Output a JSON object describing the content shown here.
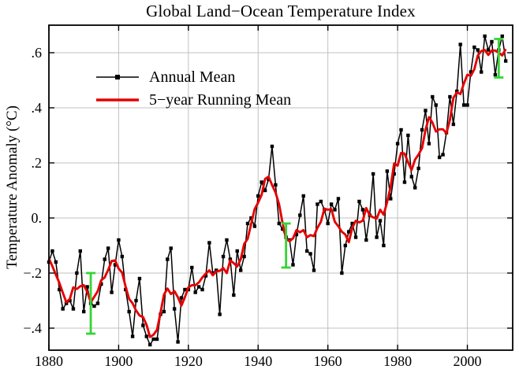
{
  "chart_data": {
    "type": "line",
    "title": "Global Land−Ocean Temperature Index",
    "ylabel": "Temperature Anomaly (°C)",
    "xlabel": "",
    "xlim": [
      1880,
      2013
    ],
    "ylim": [
      -0.48,
      0.7
    ],
    "grid": true,
    "legend_position": "upper-left-inside",
    "x_ticks": {
      "values": [
        1880,
        1900,
        1920,
        1940,
        1960,
        1980,
        2000
      ],
      "labels": [
        "1880",
        "1900",
        "1920",
        "1940",
        "1960",
        "1980",
        "2000"
      ]
    },
    "y_ticks": {
      "values": [
        -0.4,
        -0.2,
        0,
        0.2,
        0.4,
        0.6
      ],
      "labels": [
        "−.4",
        "−.2",
        "0.",
        ".2",
        ".4",
        ".6"
      ]
    },
    "colors": {
      "grid": "#c0c0c0",
      "frame": "#000000",
      "background": "#ffffff"
    },
    "series": [
      {
        "name": "Annual Mean",
        "color": "#000000",
        "marker": "square",
        "start_year": 1880,
        "end_year": 2011,
        "values": [
          -0.16,
          -0.12,
          -0.16,
          -0.26,
          -0.33,
          -0.31,
          -0.3,
          -0.33,
          -0.2,
          -0.12,
          -0.34,
          -0.25,
          -0.31,
          -0.32,
          -0.31,
          -0.24,
          -0.15,
          -0.11,
          -0.27,
          -0.17,
          -0.08,
          -0.14,
          -0.26,
          -0.34,
          -0.43,
          -0.3,
          -0.22,
          -0.39,
          -0.43,
          -0.46,
          -0.44,
          -0.44,
          -0.35,
          -0.34,
          -0.15,
          -0.11,
          -0.33,
          -0.45,
          -0.29,
          -0.26,
          -0.26,
          -0.18,
          -0.27,
          -0.25,
          -0.26,
          -0.21,
          -0.09,
          -0.2,
          -0.19,
          -0.35,
          -0.14,
          -0.08,
          -0.15,
          -0.28,
          -0.12,
          -0.19,
          -0.14,
          -0.02,
          0.0,
          -0.03,
          0.08,
          0.13,
          0.1,
          0.14,
          0.26,
          0.12,
          -0.02,
          -0.04,
          -0.07,
          -0.08,
          -0.17,
          -0.06,
          0.01,
          0.08,
          -0.12,
          -0.13,
          -0.19,
          0.05,
          0.06,
          0.03,
          -0.02,
          0.05,
          0.03,
          0.07,
          -0.2,
          -0.1,
          -0.05,
          -0.02,
          -0.07,
          0.06,
          0.03,
          -0.08,
          0.01,
          0.16,
          -0.07,
          -0.01,
          -0.1,
          0.17,
          0.07,
          0.16,
          0.27,
          0.32,
          0.13,
          0.3,
          0.15,
          0.11,
          0.18,
          0.32,
          0.39,
          0.27,
          0.44,
          0.41,
          0.22,
          0.23,
          0.31,
          0.44,
          0.34,
          0.46,
          0.63,
          0.41,
          0.41,
          0.53,
          0.62,
          0.61,
          0.53,
          0.66,
          0.61,
          0.64,
          0.52,
          0.61,
          0.66,
          0.57
        ]
      },
      {
        "name": "5−year Running Mean",
        "color": "#e60000",
        "derived": "5-year centered running mean of Annual Mean"
      }
    ],
    "uncertainty_bars": {
      "color": "#35d435",
      "items": [
        {
          "year": 1892,
          "center": -0.31,
          "half_range": 0.11
        },
        {
          "year": 1948,
          "center": -0.1,
          "half_range": 0.08
        },
        {
          "year": 2009,
          "center": 0.58,
          "half_range": 0.07
        }
      ]
    }
  }
}
